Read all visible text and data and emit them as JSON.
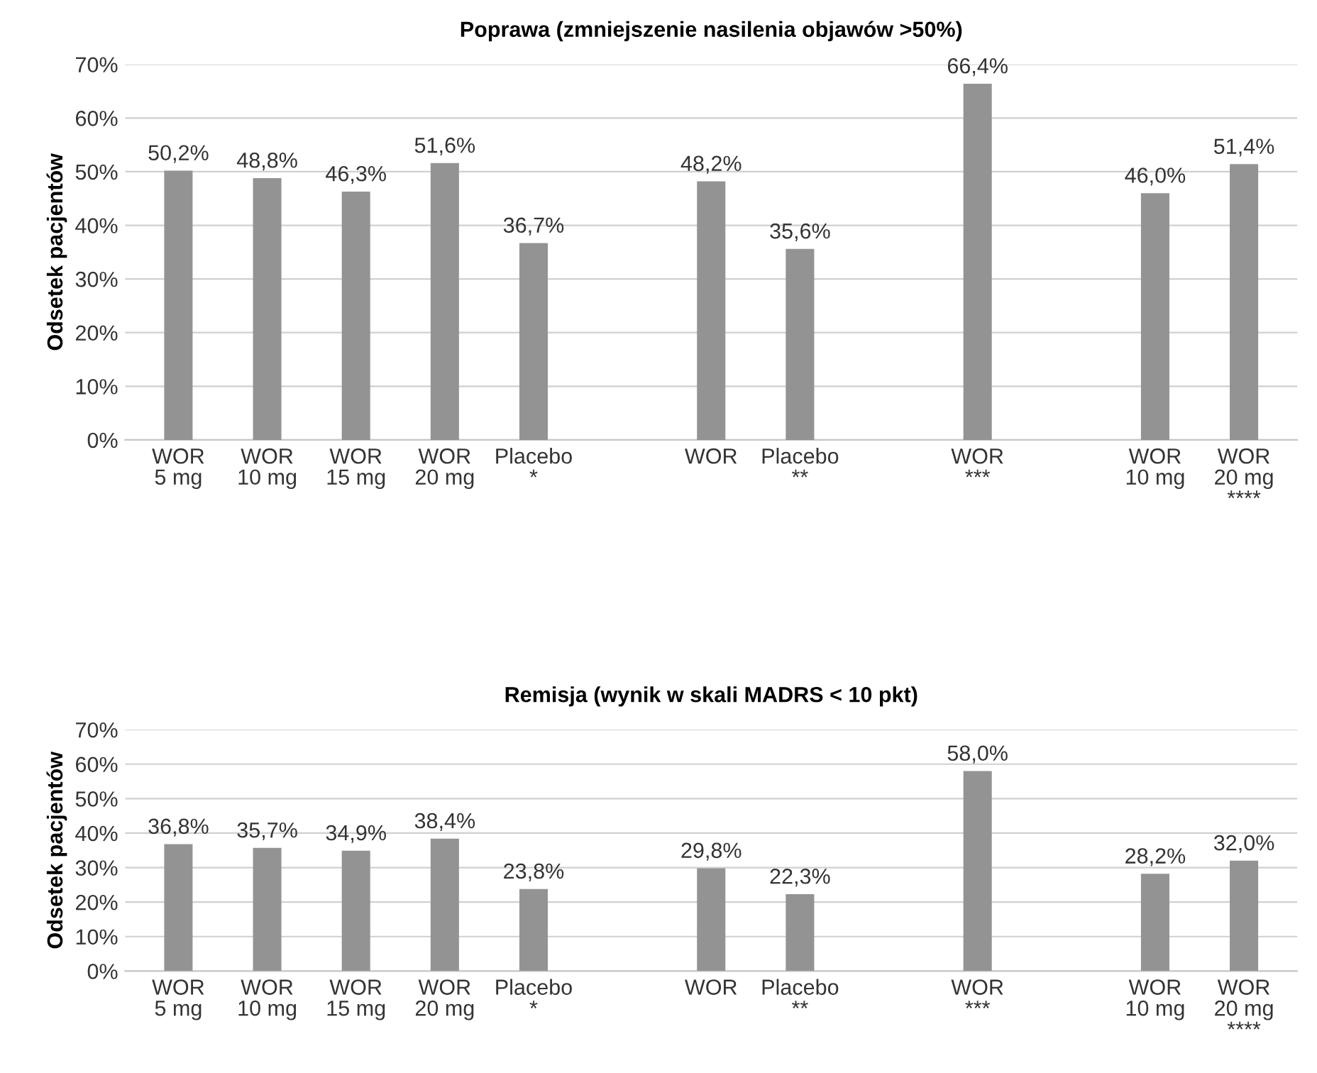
{
  "chart_data": [
    {
      "type": "bar",
      "title": "Poprawa (zmniejszenie nasilenia objawów >50%)",
      "ylabel": "Odsetek pacjentów",
      "categories": [
        "WOR\n5 mg",
        "WOR\n10 mg",
        "WOR\n15 mg",
        "WOR\n20 mg",
        "Placebo\n*",
        null,
        "WOR",
        "Placebo\n**",
        null,
        "WOR\n***",
        null,
        "WOR\n10 mg",
        "WOR\n20 mg\n****"
      ],
      "series": [
        {
          "color": "#939393",
          "values": [
            50.2,
            48.8,
            46.3,
            51.6,
            36.7,
            null,
            48.2,
            35.6,
            null,
            66.4,
            null,
            46.0,
            51.4
          ],
          "value_labels": [
            "50,2%",
            "48,8%",
            "46,3%",
            "51,6%",
            "36,7%",
            null,
            "48,2%",
            "35,6%",
            null,
            "66,4%",
            null,
            "46,0%",
            "51,4%"
          ]
        }
      ],
      "ylim": [
        0,
        70
      ],
      "yticks": [
        {
          "value": 0,
          "label": "0%"
        },
        {
          "value": 10,
          "label": "10%"
        },
        {
          "value": 20,
          "label": "20%"
        },
        {
          "value": 30,
          "label": "30%"
        },
        {
          "value": 40,
          "label": "40%"
        },
        {
          "value": 50,
          "label": "50%"
        },
        {
          "value": 60,
          "label": "60%"
        },
        {
          "value": 70,
          "label": "70%"
        }
      ],
      "grid": "y",
      "legend": false
    },
    {
      "type": "bar",
      "title": "Remisja (wynik w skali MADRS < 10 pkt)",
      "ylabel": "Odsetek pacjentów",
      "categories": [
        "WOR\n5 mg",
        "WOR\n10 mg",
        "WOR\n15 mg",
        "WOR\n20 mg",
        "Placebo\n*",
        null,
        "WOR",
        "Placebo\n**",
        null,
        "WOR\n***",
        null,
        "WOR\n10 mg",
        "WOR\n20 mg\n****"
      ],
      "series": [
        {
          "color": "#939393",
          "values": [
            36.8,
            35.7,
            34.9,
            38.4,
            23.8,
            null,
            29.8,
            22.3,
            null,
            58.0,
            null,
            28.2,
            32.0
          ],
          "value_labels": [
            "36,8%",
            "35,7%",
            "34,9%",
            "38,4%",
            "23,8%",
            null,
            "29,8%",
            "22,3%",
            null,
            "58,0%",
            null,
            "28,2%",
            "32,0%"
          ]
        }
      ],
      "ylim": [
        0,
        70
      ],
      "yticks": [
        {
          "value": 0,
          "label": "0%"
        },
        {
          "value": 10,
          "label": "10%"
        },
        {
          "value": 20,
          "label": "20%"
        },
        {
          "value": 30,
          "label": "30%"
        },
        {
          "value": 40,
          "label": "40%"
        },
        {
          "value": 50,
          "label": "50%"
        },
        {
          "value": 60,
          "label": "60%"
        },
        {
          "value": 70,
          "label": "70%"
        }
      ],
      "grid": "y",
      "legend": false
    }
  ]
}
